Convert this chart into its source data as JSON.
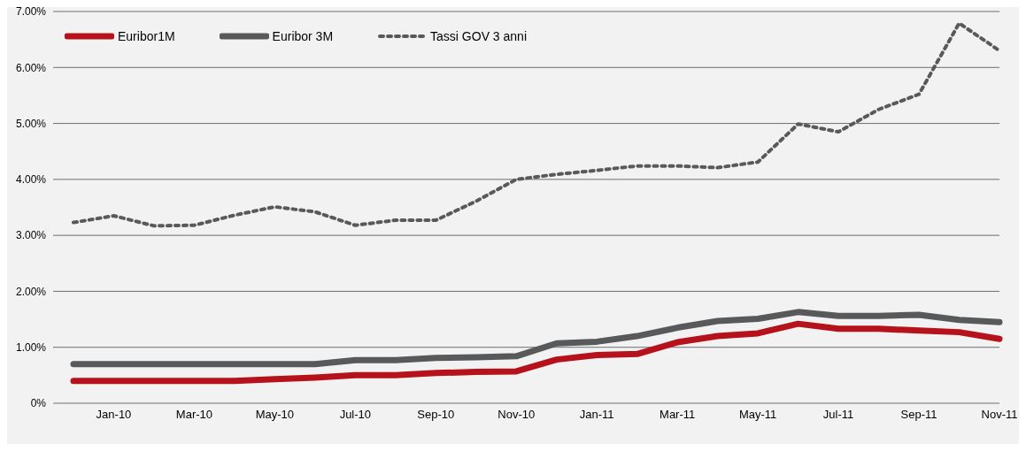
{
  "chart_data": {
    "type": "line",
    "categories": [
      null,
      "Jan-10",
      null,
      "Mar-10",
      null,
      "May-10",
      null,
      "Jul-10",
      null,
      "Sep-10",
      null,
      "Nov-10",
      null,
      "Jan-11",
      null,
      "Mar-11",
      null,
      "May-11",
      null,
      "Jul-11",
      null,
      "Sep-11",
      null,
      "Nov-11"
    ],
    "series": [
      {
        "name": "Euribor1M",
        "color": "#b5121b",
        "line_style": "solid",
        "values": [
          0.4,
          0.4,
          0.4,
          0.4,
          0.4,
          0.43,
          0.46,
          0.5,
          0.5,
          0.54,
          0.56,
          0.57,
          0.78,
          0.86,
          0.88,
          1.09,
          1.2,
          1.25,
          1.42,
          1.33,
          1.33,
          1.3,
          1.27,
          1.15
        ]
      },
      {
        "name": "Euribor 3M",
        "color": "#58595b",
        "line_style": "solid",
        "values": [
          0.7,
          0.7,
          0.7,
          0.7,
          0.7,
          0.7,
          0.7,
          0.77,
          0.77,
          0.81,
          0.82,
          0.84,
          1.07,
          1.1,
          1.2,
          1.35,
          1.47,
          1.51,
          1.63,
          1.56,
          1.56,
          1.58,
          1.49,
          1.45
        ]
      },
      {
        "name": "Tassi GOV 3 anni",
        "color": "#58595b",
        "line_style": "dashed",
        "values": [
          3.23,
          3.35,
          3.17,
          3.18,
          3.36,
          3.51,
          3.42,
          3.18,
          3.27,
          3.27,
          3.61,
          4.0,
          4.09,
          4.16,
          4.24,
          4.24,
          4.21,
          4.31,
          4.99,
          4.85,
          5.25,
          5.52,
          6.79,
          6.3
        ]
      }
    ],
    "ylim": [
      0,
      7
    ],
    "yticks": [
      {
        "value": 0,
        "label": "0%"
      },
      {
        "value": 1,
        "label": "1.00%"
      },
      {
        "value": 2,
        "label": "2.00%"
      },
      {
        "value": 3,
        "label": "3.00%"
      },
      {
        "value": 4,
        "label": "4.00%"
      },
      {
        "value": 5,
        "label": "5.00%"
      },
      {
        "value": 6,
        "label": "6.00%"
      },
      {
        "value": 7,
        "label": "7.00%"
      }
    ],
    "grid": "y",
    "legend": "top left",
    "marker": "none"
  }
}
